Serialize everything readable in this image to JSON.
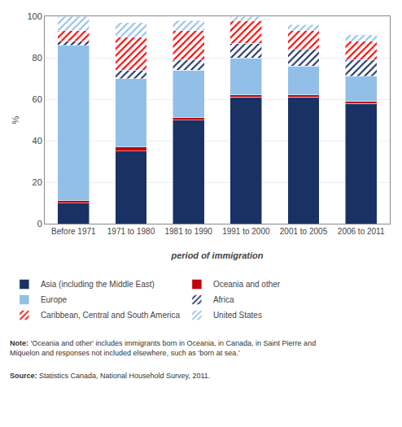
{
  "chart_data": {
    "type": "bar",
    "stacked": true,
    "categories": [
      "Before 1971",
      "1971 to 1980",
      "1981 to 1990",
      "1991 to 2000",
      "2001 to 2005",
      "2006 to 2011"
    ],
    "series": [
      {
        "name": "Asia (including the Middle East)",
        "color": "#1a3263",
        "values": [
          10,
          35,
          50,
          61,
          61,
          58
        ]
      },
      {
        "name": "Oceania and other",
        "color": "#c0000a",
        "values": [
          1,
          2,
          1,
          1,
          1,
          1
        ]
      },
      {
        "name": "Europe",
        "color": "#92bfe8",
        "values": [
          75,
          33,
          23,
          18,
          14,
          12
        ]
      },
      {
        "name": "Africa",
        "color": "#1a3263",
        "marker": "hatch",
        "values": [
          2,
          4,
          5,
          7,
          8,
          8
        ]
      },
      {
        "name": "Caribbean, Central and South America",
        "color": "#ff0000",
        "marker": "hatch",
        "values": [
          5,
          16,
          14,
          11,
          9,
          9
        ]
      },
      {
        "name": "United States",
        "color": "#92bfe8",
        "marker": "hatch",
        "values": [
          7,
          7,
          5,
          2,
          3,
          3
        ]
      }
    ],
    "xlabel": "period of immigration",
    "ylabel": "%",
    "ylim": [
      0,
      100
    ],
    "yticks": [
      0,
      20,
      40,
      60,
      80,
      100
    ],
    "grid": true,
    "legend": "bottom",
    "annotations": [
      {
        "label": "Note:",
        "text": "'Oceania and other' includes immigrants born in Oceania, in Canada, in Saint Pierre and\nMiquelon and responses not included elsewhere, such as ‘born at sea.’"
      },
      {
        "label": "Source:",
        "text": "Statistics Canada, National Household Survey, 2011."
      }
    ]
  }
}
